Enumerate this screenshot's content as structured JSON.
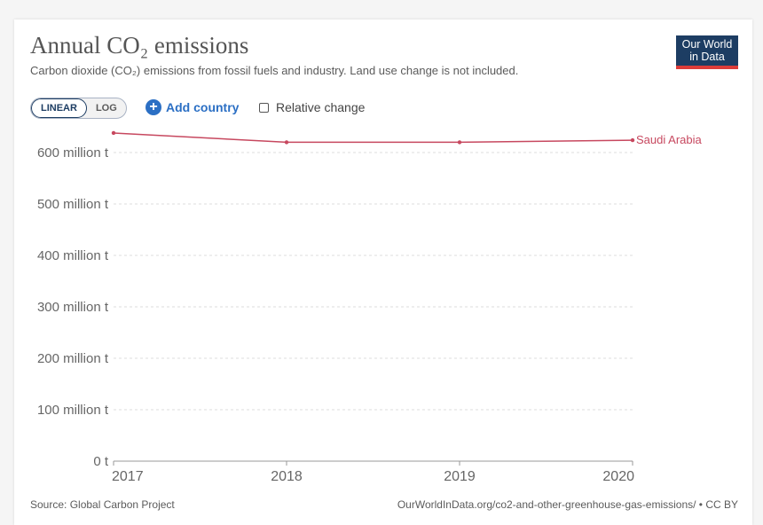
{
  "title": "Annual CO₂ emissions",
  "subtitle": "Carbon dioxide (CO₂) emissions from fossil fuels and industry. Land use change is not included.",
  "logo": {
    "line1": "Our World",
    "line2": "in Data"
  },
  "controls": {
    "linear_label": "LINEAR",
    "log_label": "LOG",
    "add_country_label": "Add country",
    "relative_change_label": "Relative change"
  },
  "footer": {
    "source": "Source: Global Carbon Project",
    "url": "OurWorldInData.org/co2-and-other-greenhouse-gas-emissions/ • CC BY"
  },
  "colors": {
    "series": "#c7485f",
    "grid": "#dddddd",
    "axis_text": "#666666"
  },
  "chart_data": {
    "type": "line",
    "title": "Annual CO₂ emissions",
    "xlabel": "",
    "ylabel": "",
    "x": [
      2017,
      2018,
      2019,
      2020
    ],
    "x_tick_labels": [
      "2017",
      "2018",
      "2019",
      "2020"
    ],
    "ylim": [
      0,
      600
    ],
    "y_ticks": [
      0,
      100,
      200,
      300,
      400,
      500,
      600
    ],
    "y_tick_labels": [
      "0 t",
      "100 million t",
      "200 million t",
      "300 million t",
      "400 million t",
      "500 million t",
      "600 million t"
    ],
    "series": [
      {
        "name": "Saudi Arabia",
        "values": [
          638,
          620,
          620,
          624
        ]
      }
    ]
  }
}
